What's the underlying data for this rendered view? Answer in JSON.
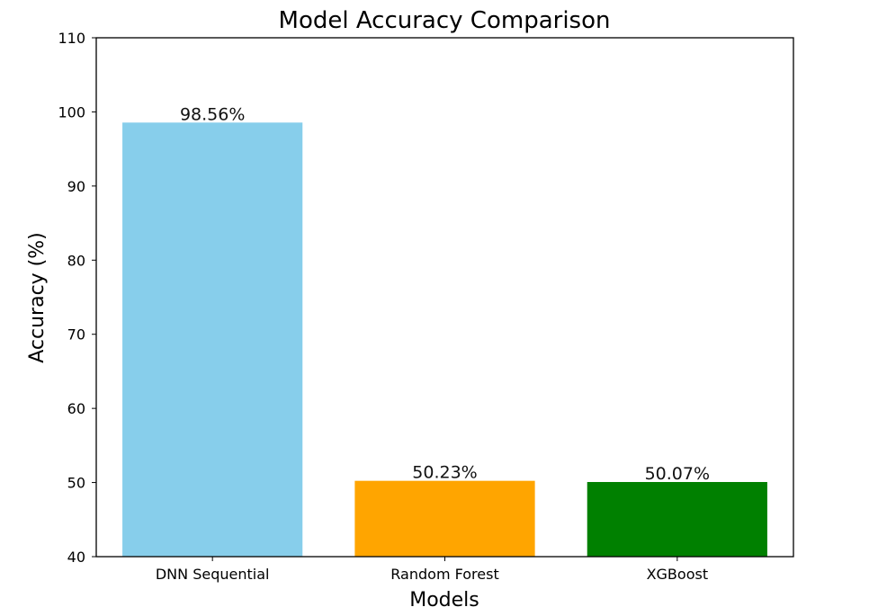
{
  "chart_data": {
    "type": "bar",
    "title": "Model Accuracy Comparison",
    "xlabel": "Models",
    "ylabel": "Accuracy (%)",
    "ylim": [
      40,
      110
    ],
    "yticks": [
      40,
      50,
      60,
      70,
      80,
      90,
      100,
      110
    ],
    "grid": false,
    "legend": "none",
    "categories": [
      "DNN Sequential",
      "Random Forest",
      "XGBoost"
    ],
    "values": [
      98.56,
      50.23,
      50.07
    ],
    "value_labels": [
      "98.56%",
      "50.23%",
      "50.07%"
    ],
    "colors": [
      "#87ceeb",
      "#ffa500",
      "#008000"
    ]
  }
}
